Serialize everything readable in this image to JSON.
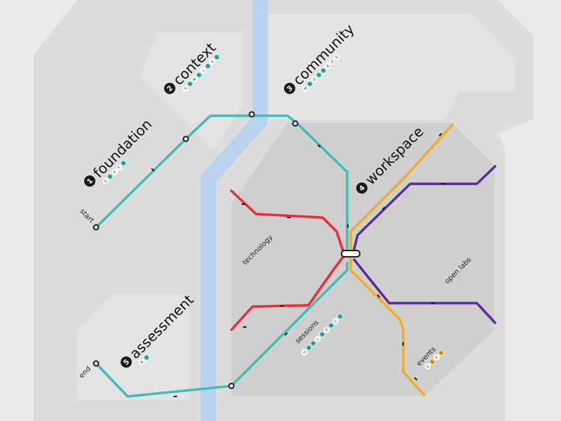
{
  "colors": {
    "bg": "#eaeaea",
    "zone_outer": "#dcdcdc",
    "zone_light": "#e3e3e3",
    "zone_work": "#cfcfcf",
    "river": "#b9d2ee",
    "teal": "#3fbdb9",
    "red": "#ee2a37",
    "orange": "#f2ad1d",
    "purple": "#5a2c96",
    "dark": "#1a1a1a",
    "pill": "#ffffff",
    "pill_on": "#3fbdb9",
    "pill_orange": "#f2ad1d"
  },
  "zones": [
    {
      "id": "foundation",
      "number": "1",
      "name": "foundation",
      "tags": [
        {
          "t": "D",
          "on": false
        },
        {
          "t": "S",
          "on": true
        },
        {
          "t": "P",
          "on": false
        },
        {
          "t": "T",
          "on": false
        },
        {
          "t": "S",
          "on": true
        }
      ]
    },
    {
      "id": "context",
      "number": "2",
      "name": "context",
      "tags": [
        {
          "t": "S",
          "on": false
        },
        {
          "t": "S",
          "on": true
        },
        {
          "t": "M",
          "on": false
        },
        {
          "t": "S",
          "on": true
        },
        {
          "t": "I",
          "on": false
        },
        {
          "t": "S",
          "on": true
        },
        {
          "t": "S",
          "on": false
        },
        {
          "t": "S",
          "on": true
        }
      ]
    },
    {
      "id": "community",
      "number": "3",
      "name": "community",
      "tags": [
        {
          "t": "M",
          "on": false
        },
        {
          "t": "S",
          "on": true
        },
        {
          "t": "O",
          "on": false
        },
        {
          "t": "S",
          "on": true
        },
        {
          "t": "S",
          "on": true
        },
        {
          "t": "B",
          "on": false
        },
        {
          "t": "O",
          "on": false
        },
        {
          "t": "S",
          "on": false
        }
      ]
    },
    {
      "id": "workspace",
      "number": "4",
      "name": "workspace",
      "tags": []
    },
    {
      "id": "assessment",
      "number": "5",
      "name": "assessment",
      "tags": [
        {
          "t": "R",
          "on": false
        },
        {
          "t": "S",
          "on": true
        }
      ]
    }
  ],
  "terminals": {
    "start": "start",
    "end": "end"
  },
  "line_labels": {
    "technology": "technology",
    "open_labs": "open labs",
    "sessions": "sessions",
    "events": "events"
  },
  "line_tags": {
    "sessions": [
      {
        "t": "H",
        "on": false
      },
      {
        "t": "S",
        "on": true
      },
      {
        "t": "S",
        "on": true
      },
      {
        "t": "L",
        "on": false
      },
      {
        "t": "S",
        "on": true
      },
      {
        "t": "P",
        "on": false
      },
      {
        "t": "S",
        "on": true
      },
      {
        "t": "C",
        "on": false
      },
      {
        "t": "S",
        "on": true
      }
    ],
    "events": [
      {
        "t": "C",
        "on": false
      },
      {
        "t": "S",
        "on": "orange"
      },
      {
        "t": "E",
        "on": false
      },
      {
        "t": "S",
        "on": "orange"
      }
    ]
  }
}
